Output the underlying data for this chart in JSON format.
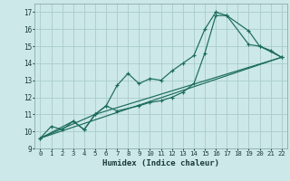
{
  "xlabel": "Humidex (Indice chaleur)",
  "bg_color": "#cce8e8",
  "grid_color": "#aacccc",
  "line_color": "#1a6b5a",
  "xlim": [
    -0.5,
    22.5
  ],
  "ylim": [
    9,
    17.5
  ],
  "xticks": [
    0,
    1,
    2,
    3,
    4,
    5,
    6,
    7,
    8,
    9,
    10,
    11,
    12,
    13,
    14,
    15,
    16,
    17,
    18,
    19,
    20,
    21,
    22
  ],
  "yticks": [
    9,
    10,
    11,
    12,
    13,
    14,
    15,
    16,
    17
  ],
  "line1_x": [
    0,
    1,
    2,
    3,
    4,
    5,
    6,
    7,
    8,
    9,
    10,
    11,
    12,
    13,
    14,
    15,
    16,
    17,
    19,
    20,
    21,
    22
  ],
  "line1_y": [
    9.6,
    10.3,
    10.1,
    10.6,
    10.1,
    11.0,
    11.5,
    12.7,
    13.4,
    12.8,
    13.1,
    13.0,
    13.55,
    14.0,
    14.45,
    16.0,
    17.0,
    16.8,
    15.1,
    15.0,
    14.75,
    14.35
  ],
  "line2_x": [
    0,
    3,
    4,
    5,
    6,
    7,
    9,
    10,
    11,
    12,
    13,
    14,
    15,
    16,
    17,
    19,
    20,
    22
  ],
  "line2_y": [
    9.6,
    10.6,
    10.1,
    11.0,
    11.5,
    11.2,
    11.5,
    11.7,
    11.8,
    12.0,
    12.3,
    12.8,
    14.6,
    16.8,
    16.8,
    15.9,
    15.0,
    14.35
  ],
  "line3_x": [
    0,
    22
  ],
  "line3_y": [
    9.6,
    14.35
  ],
  "line4_x": [
    0,
    5,
    22
  ],
  "line4_y": [
    9.6,
    11.0,
    14.35
  ]
}
